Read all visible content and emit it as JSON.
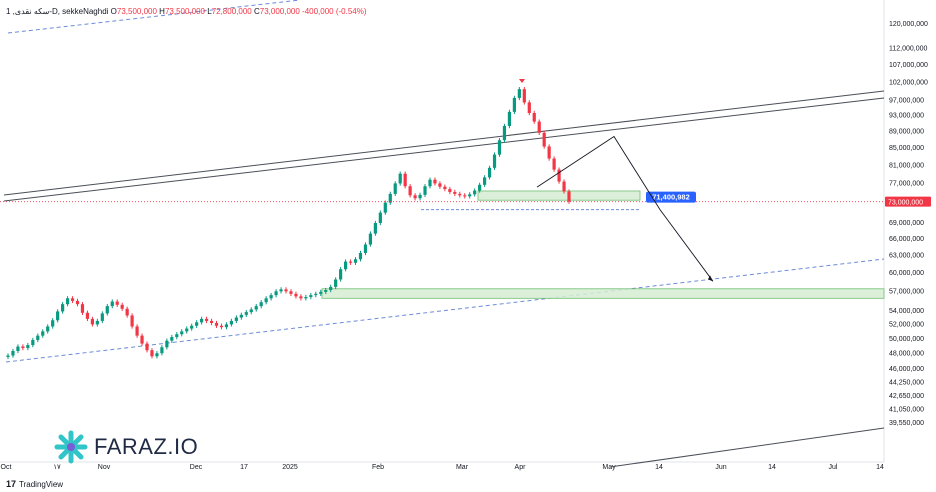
{
  "header": {
    "symbol": "1 ,سکه نقدی-D, sekkeNaghdi",
    "open_label": "O",
    "open": "73,500,000",
    "high_label": "H",
    "high": "73,500,000",
    "low_label": "L",
    "low": "72,800,000",
    "close_label": "C",
    "close": "73,000,000",
    "change": "-400,000 (-0.54%)"
  },
  "watermark": {
    "text": "FARAZ.IO"
  },
  "footer": {
    "logo": "17",
    "brand": "TradingView"
  },
  "colors": {
    "up": "#089981",
    "down": "#f23645",
    "zone_fill": "#d6ecd2",
    "zone_stroke": "#6fbf73",
    "target_label": "#2962ff"
  },
  "chart_data": {
    "type": "candlestick",
    "yscale": "log",
    "ylim": [
      36500000,
      123000000
    ],
    "ytick_labels": [
      "120,000,000",
      "112,000,000",
      "107,000,000",
      "102,000,000",
      "97,000,000",
      "93,000,000",
      "89,000,000",
      "85,000,000",
      "81,000,000",
      "77,000,000",
      "69,000,000",
      "66,000,000",
      "63,000,000",
      "60,000,000",
      "57,000,000",
      "54,000,000",
      "52,000,000",
      "50,000,000",
      "48,000,000",
      "46,000,000",
      "44,250,000",
      "42,650,000",
      "41,050,000",
      "39,550,000"
    ],
    "xtick_labels": [
      "Oct",
      "۱۷",
      "Nov",
      "Dec",
      "17",
      "2025",
      "Feb",
      "Mar",
      "Apr",
      "May",
      "14",
      "Jun",
      "14",
      "Jul",
      "14"
    ],
    "last_price": {
      "value": 73000000,
      "label": "73,000,000"
    },
    "target": {
      "value": 71400982,
      "label": "71,400,982"
    },
    "zones": [
      {
        "low": 73300000,
        "high": 75200000
      },
      {
        "low": 55800000,
        "high": 57300000
      }
    ],
    "projection": [
      76000000,
      87500000,
      71400982,
      58500000
    ],
    "closes": [
      47600000,
      48200000,
      48800000,
      48600000,
      49000000,
      49700000,
      50300000,
      50900000,
      51600000,
      52500000,
      53800000,
      54900000,
      55800000,
      55400000,
      54900000,
      53600000,
      52700000,
      51900000,
      52400000,
      53500000,
      54600000,
      55300000,
      54800000,
      54200000,
      53200000,
      51600000,
      50300000,
      49200000,
      48300000,
      47500000,
      47900000,
      48700000,
      49600000,
      50100000,
      50500000,
      50900000,
      51300000,
      51700000,
      52200000,
      52700000,
      52400000,
      52100000,
      51700000,
      51500000,
      51900000,
      52400000,
      52900000,
      53300000,
      53700000,
      54100000,
      54600000,
      55200000,
      55800000,
      56300000,
      56900000,
      57200000,
      56900000,
      56500000,
      56100000,
      55800000,
      56000000,
      56300000,
      56500000,
      56800000,
      57100000,
      57600000,
      58800000,
      60500000,
      61800000,
      61600000,
      62200000,
      63300000,
      64800000,
      66800000,
      68800000,
      70800000,
      72800000,
      74600000,
      76800000,
      78900000,
      76200000,
      74300000,
      73700000,
      74400000,
      76200000,
      77600000,
      76800000,
      76100000,
      75600000,
      75000000,
      74600000,
      74300000,
      74100000,
      74500000,
      75300000,
      76500000,
      78100000,
      80200000,
      83200000,
      86600000,
      90100000,
      93700000,
      97400000,
      99800000,
      96200000,
      93400000,
      91200000,
      88400000,
      85100000,
      82300000,
      79800000,
      77200000,
      75100000,
      73000000
    ]
  }
}
